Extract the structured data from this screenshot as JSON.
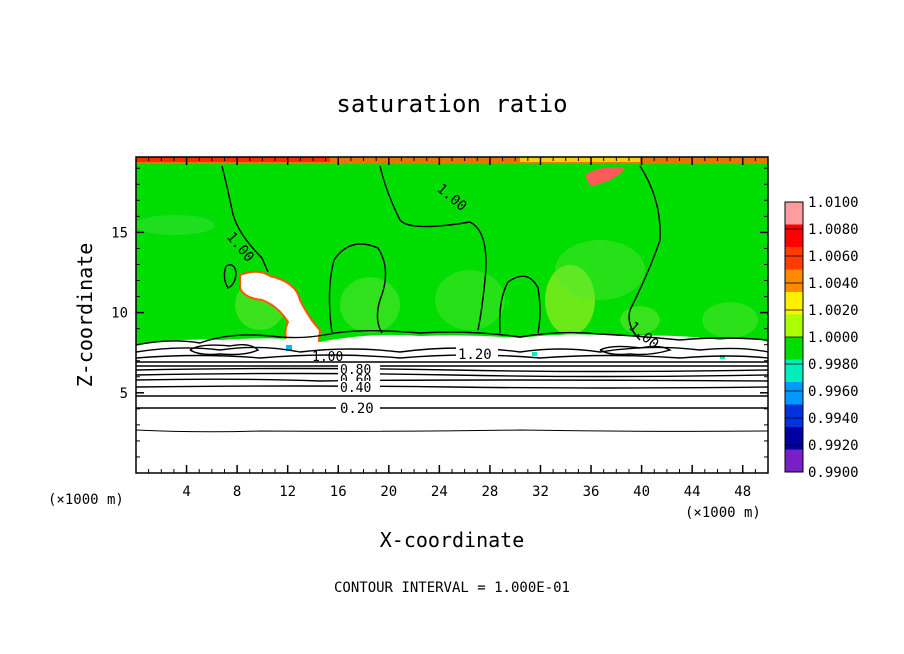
{
  "chart_data": {
    "type": "heatmap",
    "title": "saturation ratio",
    "xlabel": "X-coordinate",
    "ylabel": "Z-coordinate",
    "x_unit_left": "(×1000 m)",
    "x_unit_right": "(×1000 m)",
    "xlim": [
      0,
      50
    ],
    "ylim": [
      0,
      19.7
    ],
    "x_ticks": [
      4,
      8,
      12,
      16,
      20,
      24,
      28,
      32,
      36,
      40,
      44,
      48
    ],
    "y_ticks": [
      5,
      10,
      15
    ],
    "colorbar_levels": [
      "1.0100",
      "1.0080",
      "1.0060",
      "1.0040",
      "1.0020",
      "1.0000",
      "0.9980",
      "0.9960",
      "0.9940",
      "0.9920",
      "0.9900"
    ],
    "colorbar_colors": [
      "#ff9ca0",
      "#ff0000",
      "#ff3c00",
      "#ff8a00",
      "#fff000",
      "#aaff00",
      "#00dd00",
      "#00eebb",
      "#0099ff",
      "#0033dd",
      "#0000a0",
      "#7a1fc8"
    ],
    "contour_interval_text": "CONTOUR INTERVAL = 1.000E-01",
    "contour_labels": [
      "1.00",
      "1.00",
      "1.00",
      "1.00",
      "1.20",
      "0.80",
      "0.60",
      "0.40",
      "0.20"
    ],
    "field_color": "#00dd00"
  }
}
